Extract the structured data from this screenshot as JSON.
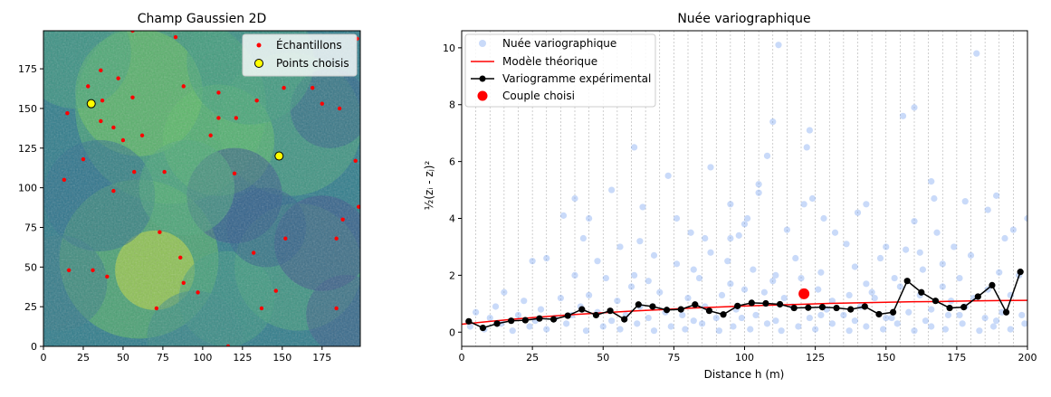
{
  "chart_data": [
    {
      "type": "heatmap",
      "title": "Champ Gaussien 2D",
      "xlabel": "",
      "ylabel": "",
      "xlim": [
        0,
        199
      ],
      "ylim": [
        0,
        199
      ],
      "xticks": [
        0,
        25,
        50,
        75,
        100,
        125,
        150,
        175
      ],
      "yticks": [
        0,
        25,
        50,
        75,
        100,
        125,
        150,
        175
      ],
      "colormap": "viridis",
      "legend_position": "top-right",
      "legend": [
        "Échantillons",
        "Points choisis"
      ],
      "samples": {
        "name": "Échantillons",
        "color": "#ff0000",
        "points": [
          [
            56,
            199
          ],
          [
            83,
            195
          ],
          [
            36,
            174
          ],
          [
            47,
            169
          ],
          [
            28,
            164
          ],
          [
            88,
            164
          ],
          [
            15,
            147
          ],
          [
            37,
            155
          ],
          [
            56,
            157
          ],
          [
            110,
            160
          ],
          [
            134,
            155
          ],
          [
            151,
            163
          ],
          [
            169,
            163
          ],
          [
            175,
            153
          ],
          [
            186,
            150
          ],
          [
            36,
            142
          ],
          [
            44,
            138
          ],
          [
            50,
            130
          ],
          [
            62,
            133
          ],
          [
            110,
            144
          ],
          [
            121,
            144
          ],
          [
            105,
            133
          ],
          [
            25,
            118
          ],
          [
            13,
            105
          ],
          [
            57,
            110
          ],
          [
            76,
            110
          ],
          [
            120,
            109
          ],
          [
            196,
            117
          ],
          [
            198,
            88
          ],
          [
            44,
            98
          ],
          [
            188,
            80
          ],
          [
            184,
            68
          ],
          [
            73,
            72
          ],
          [
            86,
            56
          ],
          [
            132,
            59
          ],
          [
            152,
            68
          ],
          [
            16,
            48
          ],
          [
            31,
            48
          ],
          [
            40,
            44
          ],
          [
            88,
            40
          ],
          [
            97,
            34
          ],
          [
            146,
            35
          ],
          [
            184,
            24
          ],
          [
            71,
            24
          ],
          [
            137,
            24
          ],
          [
            116,
            0
          ],
          [
            197,
            194
          ]
        ]
      },
      "chosen_points": {
        "name": "Points choisis",
        "color": "#ffff00",
        "points": [
          [
            30,
            153
          ],
          [
            148,
            120
          ]
        ]
      }
    },
    {
      "type": "scatter",
      "title": "Nuée variographique",
      "xlabel": "Distance h (m)",
      "ylabel": "½(zᵢ - zⱼ)²",
      "xlim": [
        0,
        200
      ],
      "ylim": [
        -0.5,
        10.6
      ],
      "xticks": [
        0,
        25,
        50,
        75,
        100,
        125,
        150,
        175,
        200
      ],
      "yticks": [
        0,
        2,
        4,
        6,
        8,
        10
      ],
      "grid": "vertical dotted lines every 5 m",
      "legend_position": "top-left",
      "legend": [
        "Nuée variographique",
        "Modèle théorique",
        "Variogramme expérimental",
        "Couple choisi"
      ],
      "series": [
        {
          "name": "Nuée variographique",
          "kind": "scatter",
          "color": "#6495ed",
          "opacity": 0.35,
          "points": [
            [
              112,
              10.1
            ],
            [
              182,
              9.8
            ],
            [
              160,
              7.9
            ],
            [
              156,
              7.6
            ],
            [
              110,
              7.4
            ],
            [
              108,
              6.2
            ],
            [
              123,
              7.1
            ],
            [
              122,
              6.5
            ],
            [
              61,
              6.5
            ],
            [
              73,
              5.5
            ],
            [
              88,
              5.8
            ],
            [
              53,
              5.0
            ],
            [
              40,
              4.7
            ],
            [
              105,
              5.2
            ],
            [
              105,
              4.9
            ],
            [
              124,
              4.7
            ],
            [
              121,
              4.5
            ],
            [
              166,
              5.3
            ],
            [
              167,
              4.7
            ],
            [
              189,
              4.8
            ],
            [
              195,
              3.6
            ],
            [
              200,
              4.0
            ],
            [
              64,
              4.4
            ],
            [
              95,
              4.5
            ],
            [
              101,
              4.0
            ],
            [
              128,
              4.0
            ],
            [
              143,
              4.5
            ],
            [
              140,
              4.2
            ],
            [
              178,
              4.6
            ],
            [
              186,
              4.3
            ],
            [
              36,
              4.1
            ],
            [
              45,
              4.0
            ],
            [
              76,
              4.0
            ],
            [
              95,
              3.3
            ],
            [
              63,
              3.2
            ],
            [
              100,
              3.8
            ],
            [
              115,
              3.6
            ],
            [
              160,
              3.9
            ],
            [
              168,
              3.5
            ],
            [
              43,
              3.3
            ],
            [
              56,
              3.0
            ],
            [
              81,
              3.5
            ],
            [
              86,
              3.3
            ],
            [
              98,
              3.4
            ],
            [
              132,
              3.5
            ],
            [
              136,
              3.1
            ],
            [
              150,
              3.0
            ],
            [
              157,
              2.9
            ],
            [
              174,
              3.0
            ],
            [
              192,
              3.3
            ],
            [
              25,
              2.5
            ],
            [
              30,
              2.6
            ],
            [
              48,
              2.5
            ],
            [
              68,
              2.7
            ],
            [
              88,
              2.8
            ],
            [
              118,
              2.6
            ],
            [
              148,
              2.6
            ],
            [
              180,
              2.7
            ],
            [
              61,
              2.0
            ],
            [
              76,
              2.4
            ],
            [
              103,
              2.2
            ],
            [
              111,
              2.0
            ],
            [
              127,
              2.1
            ],
            [
              139,
              2.3
            ],
            [
              163,
              2.2
            ],
            [
              190,
              2.1
            ],
            [
              197,
              2.0
            ],
            [
              40,
              2.0
            ],
            [
              51,
              1.9
            ],
            [
              66,
              1.8
            ],
            [
              84,
              1.9
            ],
            [
              95,
              1.7
            ],
            [
              110,
              1.8
            ],
            [
              120,
              1.9
            ],
            [
              143,
              1.7
            ],
            [
              155,
              1.6
            ],
            [
              170,
              1.6
            ],
            [
              186,
              1.5
            ],
            [
              15,
              1.4
            ],
            [
              22,
              1.1
            ],
            [
              35,
              1.2
            ],
            [
              45,
              1.3
            ],
            [
              55,
              1.1
            ],
            [
              70,
              1.4
            ],
            [
              80,
              1.2
            ],
            [
              92,
              1.3
            ],
            [
              100,
              1.5
            ],
            [
              107,
              1.4
            ],
            [
              114,
              1.2
            ],
            [
              131,
              1.1
            ],
            [
              137,
              1.3
            ],
            [
              146,
              1.2
            ],
            [
              162,
              1.3
            ],
            [
              173,
              1.1
            ],
            [
              181,
              1.2
            ],
            [
              194,
              1.3
            ],
            [
              5,
              0.7
            ],
            [
              12,
              0.9
            ],
            [
              20,
              0.6
            ],
            [
              28,
              0.8
            ],
            [
              33,
              0.5
            ],
            [
              42,
              0.9
            ],
            [
              48,
              0.7
            ],
            [
              58,
              0.6
            ],
            [
              63,
              0.9
            ],
            [
              72,
              0.7
            ],
            [
              78,
              0.6
            ],
            [
              86,
              0.9
            ],
            [
              90,
              0.5
            ],
            [
              97,
              0.8
            ],
            [
              104,
              0.6
            ],
            [
              117,
              0.9
            ],
            [
              123,
              0.5
            ],
            [
              129,
              0.8
            ],
            [
              135,
              0.6
            ],
            [
              141,
              0.9
            ],
            [
              150,
              0.5
            ],
            [
              158,
              0.7
            ],
            [
              166,
              0.8
            ],
            [
              172,
              0.6
            ],
            [
              178,
              0.9
            ],
            [
              185,
              0.5
            ],
            [
              191,
              0.7
            ],
            [
              198,
              0.6
            ],
            [
              3,
              0.2
            ],
            [
              8,
              0.1
            ],
            [
              14,
              0.3
            ],
            [
              18,
              0.05
            ],
            [
              24,
              0.2
            ],
            [
              30,
              0.1
            ],
            [
              37,
              0.3
            ],
            [
              44,
              0.05
            ],
            [
              50,
              0.2
            ],
            [
              56,
              0.1
            ],
            [
              62,
              0.3
            ],
            [
              68,
              0.05
            ],
            [
              74,
              0.2
            ],
            [
              79,
              0.1
            ],
            [
              85,
              0.3
            ],
            [
              91,
              0.05
            ],
            [
              96,
              0.2
            ],
            [
              102,
              0.1
            ],
            [
              108,
              0.3
            ],
            [
              113,
              0.05
            ],
            [
              119,
              0.2
            ],
            [
              125,
              0.1
            ],
            [
              131,
              0.3
            ],
            [
              137,
              0.05
            ],
            [
              143,
              0.2
            ],
            [
              149,
              0.1
            ],
            [
              154,
              0.3
            ],
            [
              160,
              0.05
            ],
            [
              166,
              0.2
            ],
            [
              171,
              0.1
            ],
            [
              177,
              0.3
            ],
            [
              183,
              0.05
            ],
            [
              188,
              0.2
            ],
            [
              194,
              0.1
            ],
            [
              199,
              0.3
            ],
            [
              10,
              0.5
            ],
            [
              26,
              0.4
            ],
            [
              39,
              0.6
            ],
            [
              53,
              0.4
            ],
            [
              66,
              0.5
            ],
            [
              82,
              0.4
            ],
            [
              99,
              0.5
            ],
            [
              111,
              0.4
            ],
            [
              127,
              0.6
            ],
            [
              139,
              0.4
            ],
            [
              152,
              0.5
            ],
            [
              164,
              0.4
            ],
            [
              176,
              0.6
            ],
            [
              189,
              0.4
            ],
            [
              60,
              1.6
            ],
            [
              126,
              1.5
            ],
            [
              153,
              1.9
            ],
            [
              170,
              2.4
            ],
            [
              94,
              2.5
            ],
            [
              82,
              2.2
            ],
            [
              145,
              1.4
            ],
            [
              176,
              1.9
            ],
            [
              162,
              2.8
            ]
          ]
        },
        {
          "name": "Modèle théorique",
          "kind": "line",
          "color": "#ff0000",
          "x": [
            0,
            10,
            20,
            30,
            40,
            50,
            60,
            70,
            80,
            90,
            100,
            110,
            120,
            130,
            140,
            150,
            160,
            170,
            180,
            190,
            200
          ],
          "y": [
            0.28,
            0.38,
            0.47,
            0.55,
            0.62,
            0.68,
            0.74,
            0.79,
            0.84,
            0.88,
            0.92,
            0.95,
            0.98,
            1.01,
            1.03,
            1.05,
            1.07,
            1.08,
            1.1,
            1.11,
            1.12
          ]
        },
        {
          "name": "Variogramme expérimental",
          "kind": "line-marker",
          "color": "#000000",
          "x": [
            2.5,
            7.5,
            12.5,
            17.5,
            22.5,
            27.5,
            32.5,
            37.5,
            42.5,
            47.5,
            52.5,
            57.5,
            62.5,
            67.5,
            72.5,
            77.5,
            82.5,
            87.5,
            92.5,
            97.5,
            102.5,
            107.5,
            112.5,
            117.5,
            122.5,
            127.5,
            132.5,
            137.5,
            142.5,
            147.5,
            152.5,
            157.5,
            162.5,
            167.5,
            172.5,
            177.5,
            182.5,
            187.5,
            192.5,
            197.5
          ],
          "y": [
            0.38,
            0.15,
            0.3,
            0.4,
            0.42,
            0.48,
            0.45,
            0.58,
            0.8,
            0.6,
            0.75,
            0.45,
            0.97,
            0.9,
            0.78,
            0.8,
            0.97,
            0.75,
            0.62,
            0.92,
            1.03,
            1.01,
            0.98,
            0.85,
            0.86,
            0.88,
            0.85,
            0.8,
            0.9,
            0.63,
            0.7,
            1.8,
            1.4,
            1.1,
            0.85,
            0.88,
            1.25,
            1.65,
            0.7,
            2.12
          ]
        },
        {
          "name": "Couple choisi",
          "kind": "scatter",
          "color": "#ff0000",
          "points": [
            [
              121,
              1.35
            ]
          ]
        }
      ]
    }
  ]
}
